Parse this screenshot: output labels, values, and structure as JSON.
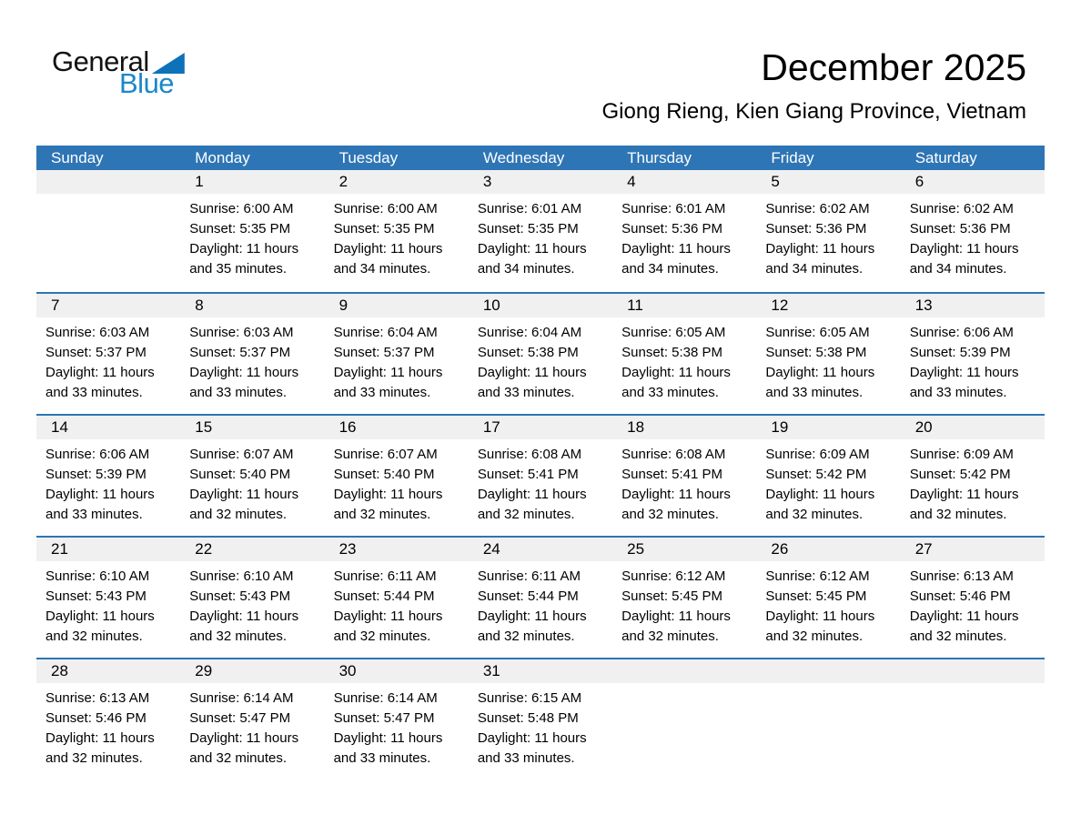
{
  "logo": {
    "general": "General",
    "blue": "Blue"
  },
  "header": {
    "title": "December 2025",
    "subtitle": "Giong Rieng, Kien Giang Province, Vietnam"
  },
  "colors": {
    "header_blue": "#2E75B5",
    "week_separator_blue": "#2E75B5",
    "day_band_gray": "#F0F0F0",
    "logo_text_blue": "#1B87C9",
    "logo_triangle_blue": "#0E72B9",
    "weekday_text": "#FFFFFF",
    "body_text": "#000000"
  },
  "calendar": {
    "weekdays": [
      "Sunday",
      "Monday",
      "Tuesday",
      "Wednesday",
      "Thursday",
      "Friday",
      "Saturday"
    ],
    "weeks": [
      [
        {
          "day": "",
          "sunrise": "",
          "sunset": "",
          "daylight_l1": "",
          "daylight_l2": ""
        },
        {
          "day": "1",
          "sunrise": "Sunrise: 6:00 AM",
          "sunset": "Sunset: 5:35 PM",
          "daylight_l1": "Daylight: 11 hours",
          "daylight_l2": "and 35 minutes."
        },
        {
          "day": "2",
          "sunrise": "Sunrise: 6:00 AM",
          "sunset": "Sunset: 5:35 PM",
          "daylight_l1": "Daylight: 11 hours",
          "daylight_l2": "and 34 minutes."
        },
        {
          "day": "3",
          "sunrise": "Sunrise: 6:01 AM",
          "sunset": "Sunset: 5:35 PM",
          "daylight_l1": "Daylight: 11 hours",
          "daylight_l2": "and 34 minutes."
        },
        {
          "day": "4",
          "sunrise": "Sunrise: 6:01 AM",
          "sunset": "Sunset: 5:36 PM",
          "daylight_l1": "Daylight: 11 hours",
          "daylight_l2": "and 34 minutes."
        },
        {
          "day": "5",
          "sunrise": "Sunrise: 6:02 AM",
          "sunset": "Sunset: 5:36 PM",
          "daylight_l1": "Daylight: 11 hours",
          "daylight_l2": "and 34 minutes."
        },
        {
          "day": "6",
          "sunrise": "Sunrise: 6:02 AM",
          "sunset": "Sunset: 5:36 PM",
          "daylight_l1": "Daylight: 11 hours",
          "daylight_l2": "and 34 minutes."
        }
      ],
      [
        {
          "day": "7",
          "sunrise": "Sunrise: 6:03 AM",
          "sunset": "Sunset: 5:37 PM",
          "daylight_l1": "Daylight: 11 hours",
          "daylight_l2": "and 33 minutes."
        },
        {
          "day": "8",
          "sunrise": "Sunrise: 6:03 AM",
          "sunset": "Sunset: 5:37 PM",
          "daylight_l1": "Daylight: 11 hours",
          "daylight_l2": "and 33 minutes."
        },
        {
          "day": "9",
          "sunrise": "Sunrise: 6:04 AM",
          "sunset": "Sunset: 5:37 PM",
          "daylight_l1": "Daylight: 11 hours",
          "daylight_l2": "and 33 minutes."
        },
        {
          "day": "10",
          "sunrise": "Sunrise: 6:04 AM",
          "sunset": "Sunset: 5:38 PM",
          "daylight_l1": "Daylight: 11 hours",
          "daylight_l2": "and 33 minutes."
        },
        {
          "day": "11",
          "sunrise": "Sunrise: 6:05 AM",
          "sunset": "Sunset: 5:38 PM",
          "daylight_l1": "Daylight: 11 hours",
          "daylight_l2": "and 33 minutes."
        },
        {
          "day": "12",
          "sunrise": "Sunrise: 6:05 AM",
          "sunset": "Sunset: 5:38 PM",
          "daylight_l1": "Daylight: 11 hours",
          "daylight_l2": "and 33 minutes."
        },
        {
          "day": "13",
          "sunrise": "Sunrise: 6:06 AM",
          "sunset": "Sunset: 5:39 PM",
          "daylight_l1": "Daylight: 11 hours",
          "daylight_l2": "and 33 minutes."
        }
      ],
      [
        {
          "day": "14",
          "sunrise": "Sunrise: 6:06 AM",
          "sunset": "Sunset: 5:39 PM",
          "daylight_l1": "Daylight: 11 hours",
          "daylight_l2": "and 33 minutes."
        },
        {
          "day": "15",
          "sunrise": "Sunrise: 6:07 AM",
          "sunset": "Sunset: 5:40 PM",
          "daylight_l1": "Daylight: 11 hours",
          "daylight_l2": "and 32 minutes."
        },
        {
          "day": "16",
          "sunrise": "Sunrise: 6:07 AM",
          "sunset": "Sunset: 5:40 PM",
          "daylight_l1": "Daylight: 11 hours",
          "daylight_l2": "and 32 minutes."
        },
        {
          "day": "17",
          "sunrise": "Sunrise: 6:08 AM",
          "sunset": "Sunset: 5:41 PM",
          "daylight_l1": "Daylight: 11 hours",
          "daylight_l2": "and 32 minutes."
        },
        {
          "day": "18",
          "sunrise": "Sunrise: 6:08 AM",
          "sunset": "Sunset: 5:41 PM",
          "daylight_l1": "Daylight: 11 hours",
          "daylight_l2": "and 32 minutes."
        },
        {
          "day": "19",
          "sunrise": "Sunrise: 6:09 AM",
          "sunset": "Sunset: 5:42 PM",
          "daylight_l1": "Daylight: 11 hours",
          "daylight_l2": "and 32 minutes."
        },
        {
          "day": "20",
          "sunrise": "Sunrise: 6:09 AM",
          "sunset": "Sunset: 5:42 PM",
          "daylight_l1": "Daylight: 11 hours",
          "daylight_l2": "and 32 minutes."
        }
      ],
      [
        {
          "day": "21",
          "sunrise": "Sunrise: 6:10 AM",
          "sunset": "Sunset: 5:43 PM",
          "daylight_l1": "Daylight: 11 hours",
          "daylight_l2": "and 32 minutes."
        },
        {
          "day": "22",
          "sunrise": "Sunrise: 6:10 AM",
          "sunset": "Sunset: 5:43 PM",
          "daylight_l1": "Daylight: 11 hours",
          "daylight_l2": "and 32 minutes."
        },
        {
          "day": "23",
          "sunrise": "Sunrise: 6:11 AM",
          "sunset": "Sunset: 5:44 PM",
          "daylight_l1": "Daylight: 11 hours",
          "daylight_l2": "and 32 minutes."
        },
        {
          "day": "24",
          "sunrise": "Sunrise: 6:11 AM",
          "sunset": "Sunset: 5:44 PM",
          "daylight_l1": "Daylight: 11 hours",
          "daylight_l2": "and 32 minutes."
        },
        {
          "day": "25",
          "sunrise": "Sunrise: 6:12 AM",
          "sunset": "Sunset: 5:45 PM",
          "daylight_l1": "Daylight: 11 hours",
          "daylight_l2": "and 32 minutes."
        },
        {
          "day": "26",
          "sunrise": "Sunrise: 6:12 AM",
          "sunset": "Sunset: 5:45 PM",
          "daylight_l1": "Daylight: 11 hours",
          "daylight_l2": "and 32 minutes."
        },
        {
          "day": "27",
          "sunrise": "Sunrise: 6:13 AM",
          "sunset": "Sunset: 5:46 PM",
          "daylight_l1": "Daylight: 11 hours",
          "daylight_l2": "and 32 minutes."
        }
      ],
      [
        {
          "day": "28",
          "sunrise": "Sunrise: 6:13 AM",
          "sunset": "Sunset: 5:46 PM",
          "daylight_l1": "Daylight: 11 hours",
          "daylight_l2": "and 32 minutes."
        },
        {
          "day": "29",
          "sunrise": "Sunrise: 6:14 AM",
          "sunset": "Sunset: 5:47 PM",
          "daylight_l1": "Daylight: 11 hours",
          "daylight_l2": "and 32 minutes."
        },
        {
          "day": "30",
          "sunrise": "Sunrise: 6:14 AM",
          "sunset": "Sunset: 5:47 PM",
          "daylight_l1": "Daylight: 11 hours",
          "daylight_l2": "and 33 minutes."
        },
        {
          "day": "31",
          "sunrise": "Sunrise: 6:15 AM",
          "sunset": "Sunset: 5:48 PM",
          "daylight_l1": "Daylight: 11 hours",
          "daylight_l2": "and 33 minutes."
        },
        {
          "day": "",
          "sunrise": "",
          "sunset": "",
          "daylight_l1": "",
          "daylight_l2": ""
        },
        {
          "day": "",
          "sunrise": "",
          "sunset": "",
          "daylight_l1": "",
          "daylight_l2": ""
        },
        {
          "day": "",
          "sunrise": "",
          "sunset": "",
          "daylight_l1": "",
          "daylight_l2": ""
        }
      ]
    ]
  }
}
